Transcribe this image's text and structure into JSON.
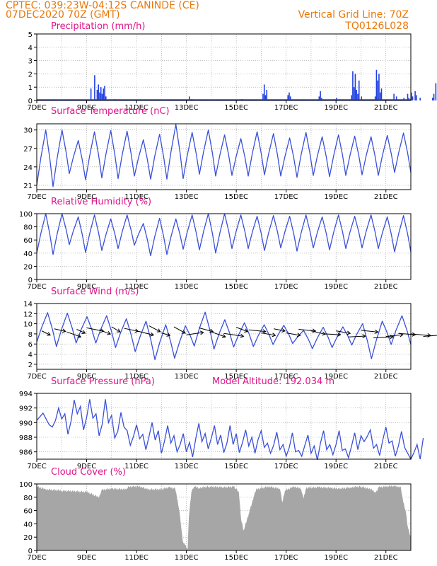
{
  "header": {
    "line1": "CPTEC:   039:23W-04:12S   CANINDE (CE)",
    "line2": "07DEC2020 70Z (GMT)",
    "right1": "Vertical Grid Line: 70Z",
    "right2": "TQ0126L028"
  },
  "colors": {
    "header": "#e8780a",
    "title": "#e0148c",
    "line": "#3a50d8",
    "bar": "#2040e0",
    "cloud": "#a6a6a6",
    "arrow": "#000000"
  },
  "chart_data": [
    {
      "type": "bar",
      "title": "Precipitation (mm/h)",
      "x_ticks": [
        "7DEC",
        "9DEC",
        "11DEC",
        "13DEC",
        "15DEC",
        "17DEC",
        "19DEC",
        "21DEC"
      ],
      "ylim": [
        0,
        5
      ],
      "y_ticks": [
        0,
        1,
        2,
        3,
        4,
        5
      ],
      "x_range_days": [
        0,
        15
      ],
      "values": [
        [
          2.15,
          0.9
        ],
        [
          2.3,
          1.9
        ],
        [
          2.4,
          0.8
        ],
        [
          2.45,
          1.2
        ],
        [
          2.5,
          0.6
        ],
        [
          2.55,
          1.0
        ],
        [
          2.6,
          0.5
        ],
        [
          2.65,
          0.9
        ],
        [
          2.7,
          1.1
        ],
        [
          2.75,
          0.3
        ],
        [
          3.1,
          0.1
        ],
        [
          4.1,
          0.05
        ],
        [
          6.1,
          0.3
        ],
        [
          6.2,
          0.1
        ],
        [
          8.2,
          0.1
        ],
        [
          9.05,
          0.5
        ],
        [
          9.1,
          1.2
        ],
        [
          9.15,
          0.4
        ],
        [
          9.2,
          0.8
        ],
        [
          10.05,
          0.4
        ],
        [
          10.1,
          0.6
        ],
        [
          10.15,
          0.3
        ],
        [
          11.3,
          0.3
        ],
        [
          11.35,
          0.7
        ],
        [
          11.4,
          0.2
        ],
        [
          11.9,
          0.1
        ],
        [
          12.0,
          0.2
        ],
        [
          12.6,
          0.4
        ],
        [
          12.65,
          2.2
        ],
        [
          12.7,
          1.0
        ],
        [
          12.75,
          2.0
        ],
        [
          12.8,
          0.8
        ],
        [
          12.85,
          0.5
        ],
        [
          12.9,
          1.5
        ],
        [
          13.0,
          0.3
        ],
        [
          13.55,
          0.3
        ],
        [
          13.6,
          2.3
        ],
        [
          13.65,
          1.5
        ],
        [
          13.7,
          2.0
        ],
        [
          13.75,
          0.6
        ],
        [
          13.8,
          0.9
        ],
        [
          14.3,
          0.5
        ],
        [
          14.4,
          0.3
        ],
        [
          14.7,
          0.2
        ],
        [
          14.85,
          0.5
        ],
        [
          14.9,
          0.2
        ],
        [
          15.0,
          0.6
        ],
        [
          15.05,
          0.3
        ],
        [
          15.15,
          0.7
        ],
        [
          15.2,
          0.4
        ],
        [
          15.35,
          0.2
        ],
        [
          15.85,
          0.2
        ],
        [
          15.9,
          0.5
        ],
        [
          15.98,
          1.3
        ]
      ]
    },
    {
      "type": "line",
      "title": "Surface Temperature (nC)",
      "x_ticks": [
        "7DEC",
        "9DEC",
        "11DEC",
        "13DEC",
        "15DEC",
        "17DEC",
        "19DEC",
        "21DEC"
      ],
      "ylim": [
        20.3,
        31.0
      ],
      "y_ticks": [
        21,
        24,
        27,
        30
      ],
      "peaks": [
        30.0,
        30.0,
        28.3,
        29.7,
        29.9,
        29.8,
        28.4,
        29.3,
        30.9,
        29.6,
        30.0,
        29.2,
        28.6,
        29.7,
        29.4,
        28.7,
        29.6,
        28.9,
        29.2,
        29.0,
        28.9,
        29.1,
        29.5
      ],
      "troughs": [
        21.0,
        20.8,
        22.9,
        21.9,
        22.2,
        22.1,
        22.5,
        22.0,
        22.0,
        22.1,
        22.8,
        22.5,
        22.6,
        22.5,
        22.7,
        22.5,
        22.3,
        22.6,
        22.4,
        22.6,
        22.7,
        22.6,
        23.1
      ],
      "offset_days": 0.5
    },
    {
      "type": "line",
      "title": "Relative Humidity (%)",
      "x_ticks": [
        "7DEC",
        "9DEC",
        "11DEC",
        "13DEC",
        "15DEC",
        "17DEC",
        "19DEC",
        "21DEC"
      ],
      "ylim": [
        0,
        100
      ],
      "y_ticks": [
        0,
        20,
        40,
        60,
        80,
        100
      ],
      "peaks": [
        100,
        100,
        95,
        98,
        92,
        98,
        85,
        93,
        92,
        98,
        100,
        100,
        98,
        96,
        97,
        96,
        98,
        95,
        98,
        96,
        98,
        95,
        97
      ],
      "troughs": [
        40,
        38,
        53,
        41,
        44,
        47,
        52,
        36,
        38,
        46,
        45,
        40,
        47,
        47,
        44,
        48,
        43,
        48,
        45,
        47,
        48,
        47,
        42
      ],
      "offset_days": 0.5
    },
    {
      "type": "line",
      "title": "Surface Wind (m/s)",
      "x_ticks": [
        "7DEC",
        "9DEC",
        "11DEC",
        "13DEC",
        "15DEC",
        "17DEC",
        "19DEC",
        "21DEC"
      ],
      "ylim": [
        1,
        14
      ],
      "y_ticks": [
        2,
        4,
        6,
        8,
        10,
        12,
        14
      ],
      "peaks": [
        12.2,
        12.1,
        11.4,
        11.6,
        11.0,
        10.5,
        9.8,
        9.6,
        12.3,
        10.8,
        10.2,
        9.8,
        9.7,
        8.7,
        9.3,
        9.4,
        10.0,
        10.5,
        11.6
      ],
      "troughs": [
        6.4,
        5.5,
        6.2,
        6.2,
        5.3,
        4.5,
        2.9,
        3.2,
        5.6,
        5.0,
        5.4,
        5.5,
        5.9,
        6.1,
        5.1,
        5.3,
        5.8,
        3.1,
        5.9
      ],
      "offset_days": 0.25,
      "vectors": [
        [
          0.2,
          8.6,
          0.3,
          -1.0
        ],
        [
          0.7,
          9.0,
          0.4,
          -0.6
        ],
        [
          1.2,
          8.4,
          0.5,
          -1.2
        ],
        [
          1.6,
          8.9,
          0.3,
          -0.9
        ],
        [
          2.0,
          9.2,
          0.6,
          -0.8
        ],
        [
          2.5,
          8.8,
          0.4,
          -1.0
        ],
        [
          3.0,
          9.4,
          0.3,
          -1.2
        ],
        [
          3.5,
          9.1,
          0.5,
          -0.7
        ],
        [
          4.0,
          8.6,
          0.6,
          -1.0
        ],
        [
          4.5,
          9.6,
          0.4,
          -1.4
        ],
        [
          5.0,
          8.2,
          0.3,
          -0.6
        ],
        [
          5.5,
          9.4,
          0.4,
          -1.5
        ],
        [
          6.0,
          7.8,
          0.6,
          0.6
        ],
        [
          6.5,
          9.2,
          0.5,
          -0.9
        ],
        [
          7.0,
          8.4,
          0.5,
          -1.2
        ],
        [
          7.5,
          8.1,
          0.7,
          -0.7
        ],
        [
          8.0,
          9.3,
          0.4,
          -1.0
        ],
        [
          8.5,
          8.8,
          0.6,
          -0.4
        ],
        [
          9.0,
          8.2,
          0.5,
          -0.6
        ],
        [
          9.5,
          9.0,
          0.4,
          -0.5
        ],
        [
          10.0,
          8.2,
          0.5,
          -0.6
        ],
        [
          10.5,
          8.9,
          0.6,
          -0.4
        ],
        [
          11.0,
          8.6,
          0.5,
          -0.8
        ],
        [
          11.5,
          8.0,
          0.6,
          -0.2
        ],
        [
          12.0,
          8.6,
          0.5,
          -0.6
        ],
        [
          12.5,
          7.4,
          0.6,
          0.2
        ],
        [
          13.0,
          8.7,
          0.6,
          -0.4
        ],
        [
          13.5,
          7.2,
          0.7,
          0.3
        ],
        [
          14.0,
          7.5,
          0.6,
          0.4
        ],
        [
          14.5,
          8.1,
          0.6,
          -0.3
        ],
        [
          15.0,
          8.0,
          0.7,
          -0.4
        ],
        [
          15.5,
          7.5,
          0.6,
          0.3
        ]
      ]
    },
    {
      "type": "line",
      "title": "Surface Pressure (hPa)",
      "annotation": "Model Altitude: 192.034 m",
      "x_ticks": [
        "7DEC",
        "9DEC",
        "11DEC",
        "13DEC",
        "15DEC",
        "17DEC",
        "19DEC",
        "21DEC"
      ],
      "ylim": [
        985.0,
        994.0
      ],
      "y_ticks": [
        986,
        988,
        990,
        992,
        994
      ],
      "values": [
        990.3,
        990.8,
        991.3,
        990.5,
        989.7,
        989.4,
        990.3,
        992.0,
        990.5,
        991.2,
        988.4,
        990.2,
        993.1,
        991.2,
        992.2,
        989.0,
        990.7,
        993.2,
        990.6,
        991.2,
        988.2,
        989.8,
        993.2,
        990.0,
        991.0,
        987.9,
        988.8,
        991.4,
        989.4,
        988.9,
        986.9,
        988.1,
        989.7,
        987.8,
        988.4,
        986.3,
        988.1,
        990.0,
        987.6,
        988.9,
        985.8,
        987.5,
        989.6,
        987.2,
        988.2,
        986.0,
        987.0,
        988.5,
        986.0,
        987.3,
        985.3,
        987.8,
        989.9,
        987.4,
        988.5,
        986.4,
        987.9,
        989.6,
        987.0,
        988.3,
        985.9,
        987.2,
        989.6,
        987.0,
        988.5,
        985.9,
        987.3,
        989.0,
        986.8,
        988.0,
        985.8,
        987.7,
        988.9,
        986.6,
        987.2,
        985.8,
        986.9,
        988.7,
        986.3,
        987.0,
        985.4,
        986.6,
        988.6,
        986.0,
        986.2,
        985.4,
        986.9,
        988.3,
        985.8,
        986.8,
        984.9,
        987.2,
        988.9,
        986.3,
        987.0,
        985.6,
        987.0,
        988.9,
        986.2,
        986.4,
        985.2,
        986.8,
        988.6,
        986.3,
        988.2,
        987.4,
        988.1,
        989.0,
        986.5,
        987.0,
        985.5,
        987.6,
        989.4,
        987.2,
        987.5,
        985.4,
        986.8,
        988.8,
        986.6,
        985.8,
        985.0,
        985.9,
        987.0,
        985.0,
        987.9
      ],
      "x_step_days": 0.125
    },
    {
      "type": "area",
      "title": "Cloud Cover (%)",
      "x_ticks": [
        "7DEC",
        "9DEC",
        "11DEC",
        "13DEC",
        "15DEC",
        "17DEC",
        "19DEC",
        "21DEC"
      ],
      "ylim": [
        0,
        100
      ],
      "y_ticks": [
        0,
        20,
        40,
        60,
        80,
        100
      ],
      "segments": [
        [
          0,
          96
        ],
        [
          0.35,
          92
        ],
        [
          1.0,
          90
        ],
        [
          2.0,
          88
        ],
        [
          2.5,
          80
        ],
        [
          2.6,
          91
        ],
        [
          3.0,
          93
        ],
        [
          3.6,
          92
        ],
        [
          3.7,
          96
        ],
        [
          4.2,
          96
        ],
        [
          4.4,
          92
        ],
        [
          5.0,
          92
        ],
        [
          5.3,
          95
        ],
        [
          5.55,
          93
        ],
        [
          5.65,
          75
        ],
        [
          5.75,
          50
        ],
        [
          5.85,
          15
        ],
        [
          5.95,
          8
        ],
        [
          6.05,
          2
        ],
        [
          6.1,
          50
        ],
        [
          6.2,
          88
        ],
        [
          6.3,
          96
        ],
        [
          6.5,
          94
        ],
        [
          6.9,
          96
        ],
        [
          7.5,
          95
        ],
        [
          7.9,
          96
        ],
        [
          8.1,
          88
        ],
        [
          8.2,
          45
        ],
        [
          8.3,
          30
        ],
        [
          8.5,
          55
        ],
        [
          8.65,
          75
        ],
        [
          8.8,
          92
        ],
        [
          9.3,
          96
        ],
        [
          9.75,
          93
        ],
        [
          9.85,
          72
        ],
        [
          9.95,
          90
        ],
        [
          10.3,
          96
        ],
        [
          10.6,
          93
        ],
        [
          10.7,
          78
        ],
        [
          10.8,
          94
        ],
        [
          11.3,
          95
        ],
        [
          11.8,
          94
        ],
        [
          12.2,
          93
        ],
        [
          12.6,
          95
        ],
        [
          13.0,
          96
        ],
        [
          13.4,
          92
        ],
        [
          13.6,
          87
        ],
        [
          13.7,
          95
        ],
        [
          14.0,
          96
        ],
        [
          14.3,
          97
        ],
        [
          14.5,
          96
        ],
        [
          14.6,
          95
        ],
        [
          14.7,
          72
        ],
        [
          14.8,
          58
        ],
        [
          14.88,
          35
        ],
        [
          14.95,
          25
        ],
        [
          15.0,
          20
        ]
      ]
    }
  ]
}
